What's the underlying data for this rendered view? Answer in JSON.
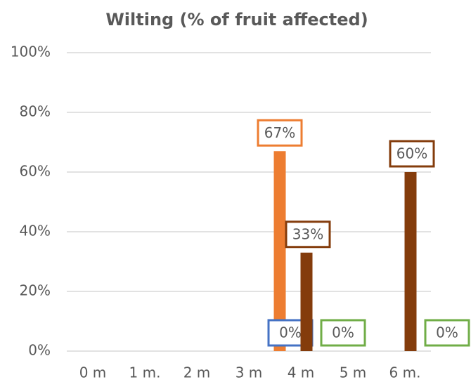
{
  "chart_data": {
    "type": "bar",
    "title": "Wilting (% of fruit affected)",
    "categories": [
      "0 m",
      "1 m.",
      "2 m",
      "3 m",
      "4 m",
      "5 m",
      "6 m."
    ],
    "series": [
      {
        "color": "#ed7d31",
        "values": [
          null,
          null,
          null,
          null,
          67,
          null,
          null
        ],
        "value_labels": [
          null,
          null,
          null,
          null,
          "67%",
          null,
          null
        ]
      },
      {
        "color": "#4472c4",
        "values": [
          null,
          null,
          null,
          null,
          0,
          null,
          null
        ],
        "value_labels": [
          null,
          null,
          null,
          null,
          "0%",
          null,
          null
        ]
      },
      {
        "color": "#843c0c",
        "values": [
          null,
          null,
          null,
          null,
          33,
          null,
          60
        ],
        "value_labels": [
          null,
          null,
          null,
          null,
          "33%",
          null,
          "60%"
        ]
      },
      {
        "color": "#70ad47",
        "values": [
          null,
          null,
          null,
          null,
          0,
          null,
          0
        ],
        "value_labels": [
          null,
          null,
          null,
          null,
          "0%",
          null,
          "0%"
        ]
      }
    ],
    "ylim": [
      0,
      100
    ],
    "yticks": [
      {
        "value": 0,
        "label": "0%"
      },
      {
        "value": 20,
        "label": "20%"
      },
      {
        "value": 40,
        "label": "40%"
      },
      {
        "value": 60,
        "label": "60%"
      },
      {
        "value": 80,
        "label": "80%"
      },
      {
        "value": 100,
        "label": "100%"
      }
    ],
    "grid": true
  }
}
